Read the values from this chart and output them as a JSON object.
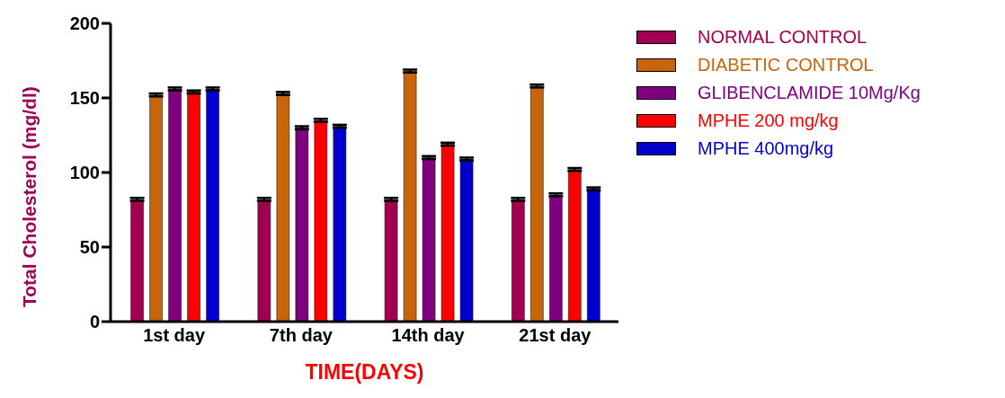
{
  "chart_data": {
    "type": "bar",
    "xlabel": "TIME(DAYS)",
    "ylabel": "Total Cholesterol (mg/dl)",
    "categories": [
      "1st day",
      "7th day",
      "14th day",
      "21st day"
    ],
    "ylim": [
      0,
      200
    ],
    "yticks": [
      0,
      50,
      100,
      150,
      200
    ],
    "legend": "right",
    "series": [
      {
        "name": "NORMAL CONTROL",
        "color": "#a0004f",
        "values": [
          82,
          82,
          82,
          82
        ],
        "errors": [
          1,
          1,
          1,
          1
        ]
      },
      {
        "name": "DIABETIC CONTROL",
        "color": "#c8650a",
        "values": [
          152,
          153,
          168,
          158
        ],
        "errors": [
          1,
          1,
          1,
          1
        ]
      },
      {
        "name": "GLIBENCLAMIDE 10Mg/Kg",
        "color": "#7f007f",
        "values": [
          156,
          130,
          110,
          85
        ],
        "errors": [
          1,
          1,
          1,
          1
        ]
      },
      {
        "name": "MPHE 200 mg/kg",
        "color": "#ff0000",
        "values": [
          154,
          135,
          119,
          102
        ],
        "errors": [
          1,
          1,
          1,
          1
        ]
      },
      {
        "name": "MPHE 400mg/kg",
        "color": "#0000cc",
        "values": [
          156,
          131,
          109,
          89
        ],
        "errors": [
          1,
          1,
          1,
          1
        ]
      }
    ]
  }
}
